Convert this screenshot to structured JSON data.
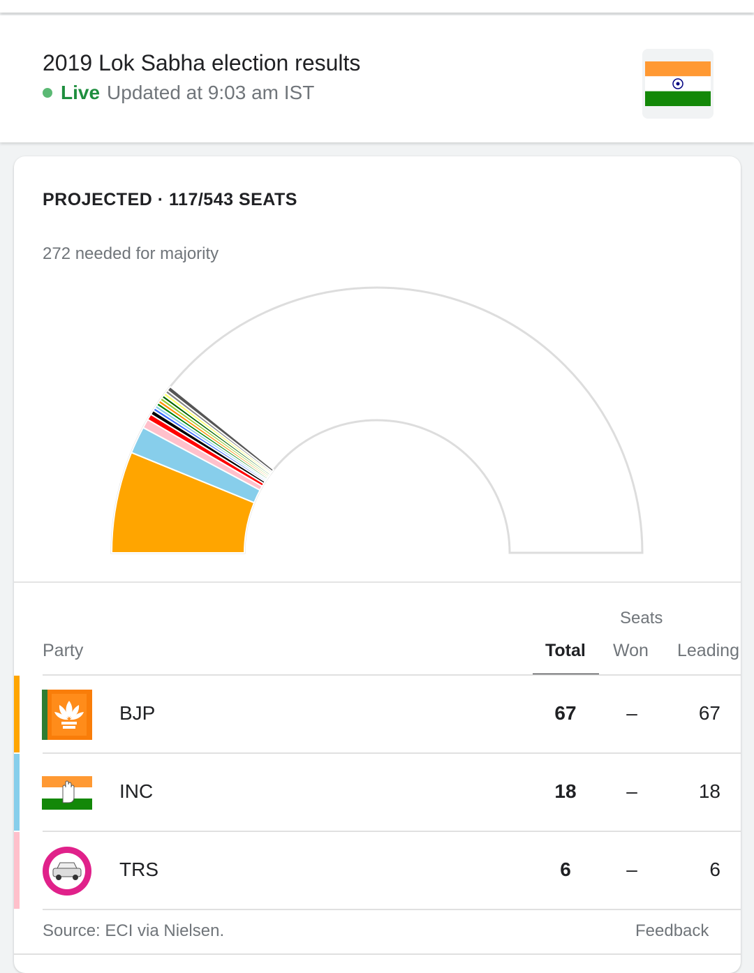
{
  "header": {
    "title": "2019 Lok Sabha election results",
    "live_label": "Live",
    "updated_text": "Updated at 9:03 am IST",
    "flag_icon": "india-flag-icon"
  },
  "summary": {
    "projected_label": "PROJECTED · 117/543 SEATS",
    "majority_label": "272 needed for majority"
  },
  "chart_data": {
    "type": "semicircle-seat-chart",
    "total_seats": 543,
    "majority": 272,
    "segments": [
      {
        "party": "BJP",
        "seats": 67,
        "color": "#ffa500"
      },
      {
        "party": "INC",
        "seats": 18,
        "color": "#87ceeb"
      },
      {
        "party": "TRS",
        "seats": 6,
        "color": "#ffc0cb"
      },
      {
        "seats": 4,
        "color": "#ff0000"
      },
      {
        "seats": 3,
        "color": "#000000"
      },
      {
        "seats": 2,
        "color": "#3366ff"
      },
      {
        "seats": 2,
        "color": "#87ceeb"
      },
      {
        "seats": 2,
        "color": "#008000"
      },
      {
        "seats": 2,
        "color": "#ff8c00"
      },
      {
        "seats": 2,
        "color": "#99cc33"
      },
      {
        "seats": 2,
        "color": "#006400"
      },
      {
        "seats": 2,
        "color": "#ffff66"
      },
      {
        "seats": 2,
        "color": "#808080"
      },
      {
        "seats": 3,
        "color": "#555555"
      }
    ]
  },
  "table": {
    "seats_header": "Seats",
    "columns": {
      "party": "Party",
      "total": "Total",
      "won": "Won",
      "leading": "Leading"
    },
    "rows": [
      {
        "party": "BJP",
        "total": "67",
        "won": "–",
        "leading": "67",
        "color": "#ffa500",
        "logo": "bjp-lotus-logo-icon"
      },
      {
        "party": "INC",
        "total": "18",
        "won": "–",
        "leading": "18",
        "color": "#87ceeb",
        "logo": "inc-hand-flag-logo-icon"
      },
      {
        "party": "TRS",
        "total": "6",
        "won": "–",
        "leading": "6",
        "color": "#ffc0cb",
        "logo": "trs-car-logo-icon"
      }
    ]
  },
  "footer": {
    "source": "Source: ECI via Nielsen.",
    "feedback": "Feedback"
  }
}
